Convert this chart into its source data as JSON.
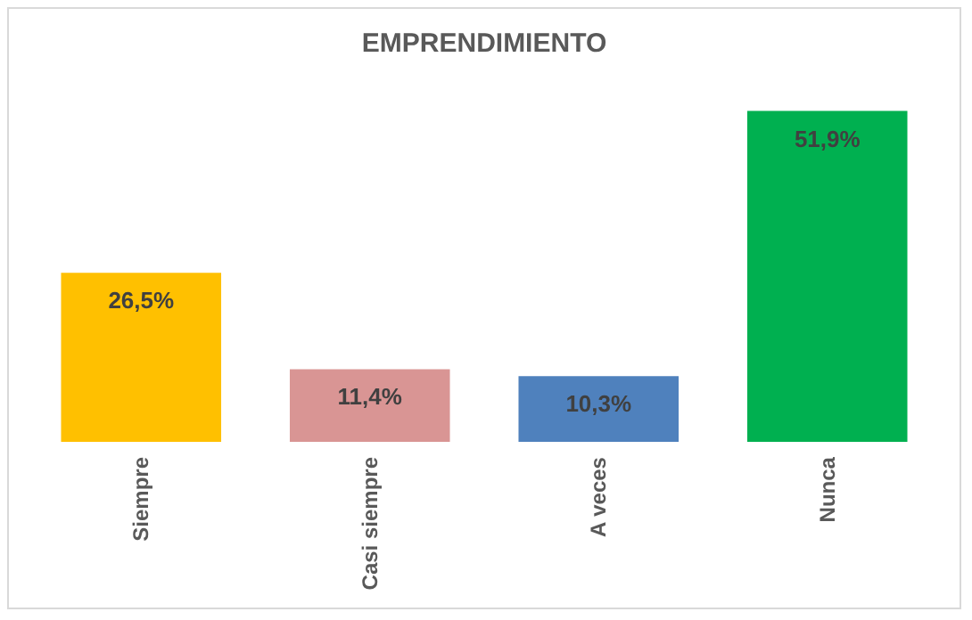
{
  "chart_data": {
    "type": "bar",
    "title": "EMPRENDIMIENTO",
    "categories": [
      "Siempre",
      "Casi siempre",
      "A veces",
      "Nunca"
    ],
    "values": [
      26.5,
      11.4,
      10.3,
      51.9
    ],
    "colors": [
      "#ffc000",
      "#d99594",
      "#4f81bd",
      "#00b050"
    ],
    "value_labels": [
      "26,5%",
      "11,4%",
      "10,3%",
      "51,9%"
    ]
  }
}
